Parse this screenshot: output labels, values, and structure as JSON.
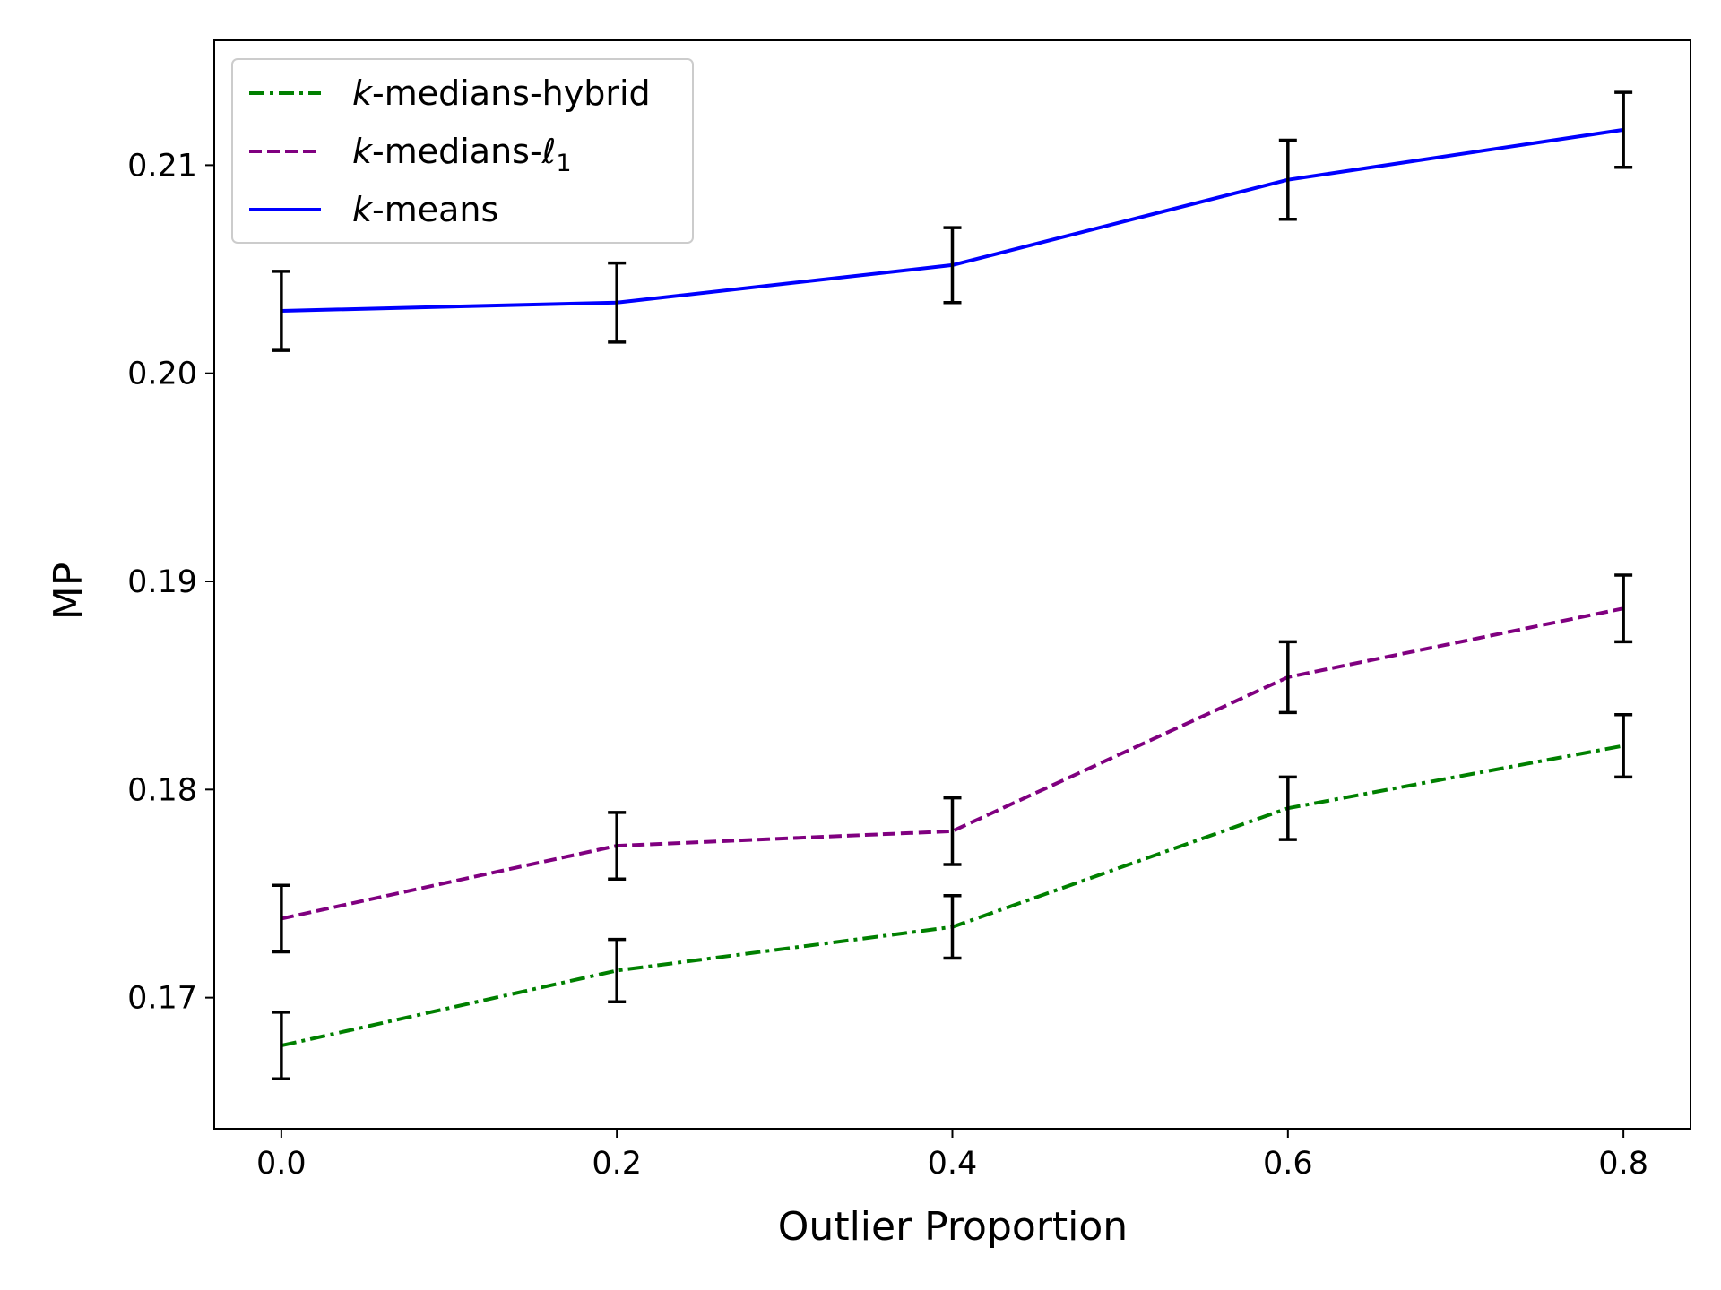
{
  "chart_data": {
    "type": "line",
    "title": "",
    "xlabel": "Outlier Proportion",
    "ylabel": "MP",
    "x": [
      0.0,
      0.2,
      0.4,
      0.6,
      0.8
    ],
    "xlim": [
      -0.04,
      0.84
    ],
    "ylim": [
      0.1637,
      0.216
    ],
    "xticks": [
      0.0,
      0.2,
      0.4,
      0.6,
      0.8
    ],
    "xtick_labels": [
      "0.0",
      "0.2",
      "0.4",
      "0.6",
      "0.8"
    ],
    "yticks": [
      0.17,
      0.18,
      0.19,
      0.2,
      0.21
    ],
    "ytick_labels": [
      "0.17",
      "0.18",
      "0.19",
      "0.20",
      "0.21"
    ],
    "grid": false,
    "legend_position": "top-left",
    "errorbar_color": "#000000",
    "series": [
      {
        "name": "k-medians-hybrid",
        "legend_math": "k",
        "legend_text": "-medians-hybrid",
        "legend_sub": "",
        "color": "#008000",
        "linestyle": "dashdot",
        "values": [
          0.1677,
          0.1713,
          0.1734,
          0.1791,
          0.1821
        ],
        "errors": [
          0.0016,
          0.0015,
          0.0015,
          0.0015,
          0.0015
        ]
      },
      {
        "name": "k-medians-ℓ1",
        "legend_math": "k",
        "legend_text": "-medians-ℓ",
        "legend_sub": "1",
        "color": "#800080",
        "linestyle": "dashed",
        "values": [
          0.1738,
          0.1773,
          0.178,
          0.1854,
          0.1887
        ],
        "errors": [
          0.0016,
          0.0016,
          0.0016,
          0.0017,
          0.0016
        ]
      },
      {
        "name": "k-means",
        "legend_math": "k",
        "legend_text": "-means",
        "legend_sub": "",
        "color": "#0000ff",
        "linestyle": "solid",
        "values": [
          0.203,
          0.2034,
          0.2052,
          0.2093,
          0.2117
        ],
        "errors": [
          0.0019,
          0.0019,
          0.0018,
          0.0019,
          0.0018
        ]
      }
    ]
  }
}
